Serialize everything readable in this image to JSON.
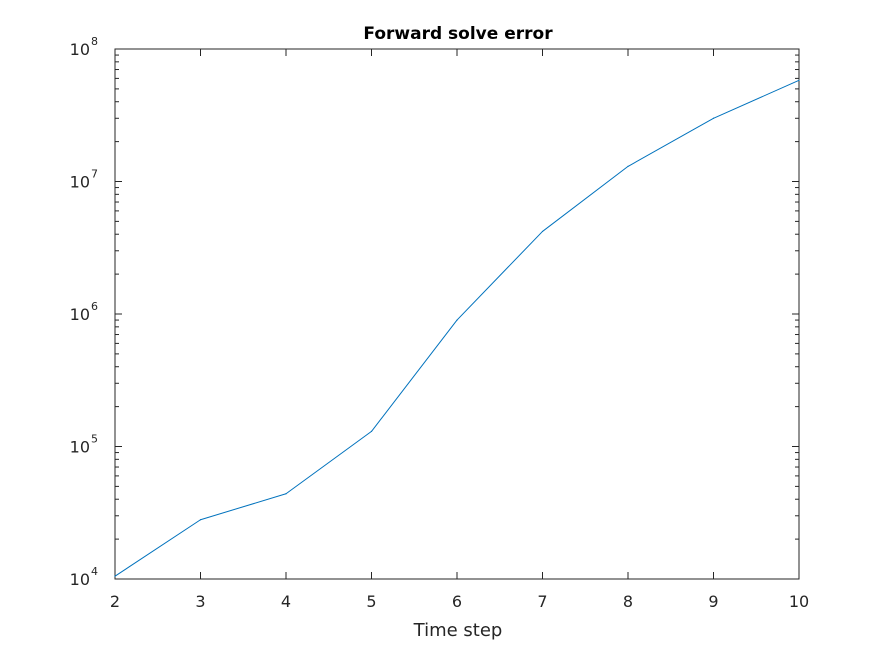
{
  "chart_data": {
    "type": "line",
    "title": "Forward solve error",
    "xlabel": "Time step",
    "ylabel": "",
    "xlim": [
      2,
      10
    ],
    "ylim": [
      10000,
      100000000
    ],
    "yscale": "log",
    "grid": false,
    "x_ticks": [
      2,
      3,
      4,
      5,
      6,
      7,
      8,
      9,
      10
    ],
    "x_tick_labels": [
      "2",
      "3",
      "4",
      "5",
      "6",
      "7",
      "8",
      "9",
      "10"
    ],
    "y_ticks": [
      10000,
      100000,
      1000000,
      10000000,
      100000000
    ],
    "y_tick_labels": [
      {
        "base": "10",
        "exp": "4"
      },
      {
        "base": "10",
        "exp": "5"
      },
      {
        "base": "10",
        "exp": "6"
      },
      {
        "base": "10",
        "exp": "7"
      },
      {
        "base": "10",
        "exp": "8"
      }
    ],
    "series": [
      {
        "name": "error",
        "color": "#0072BD",
        "x": [
          2,
          3,
          4,
          5,
          6,
          7,
          8,
          9,
          10
        ],
        "values": [
          10500,
          28000,
          44000,
          130000,
          900000,
          4200000,
          13000000,
          30000000,
          58000000
        ]
      }
    ]
  }
}
